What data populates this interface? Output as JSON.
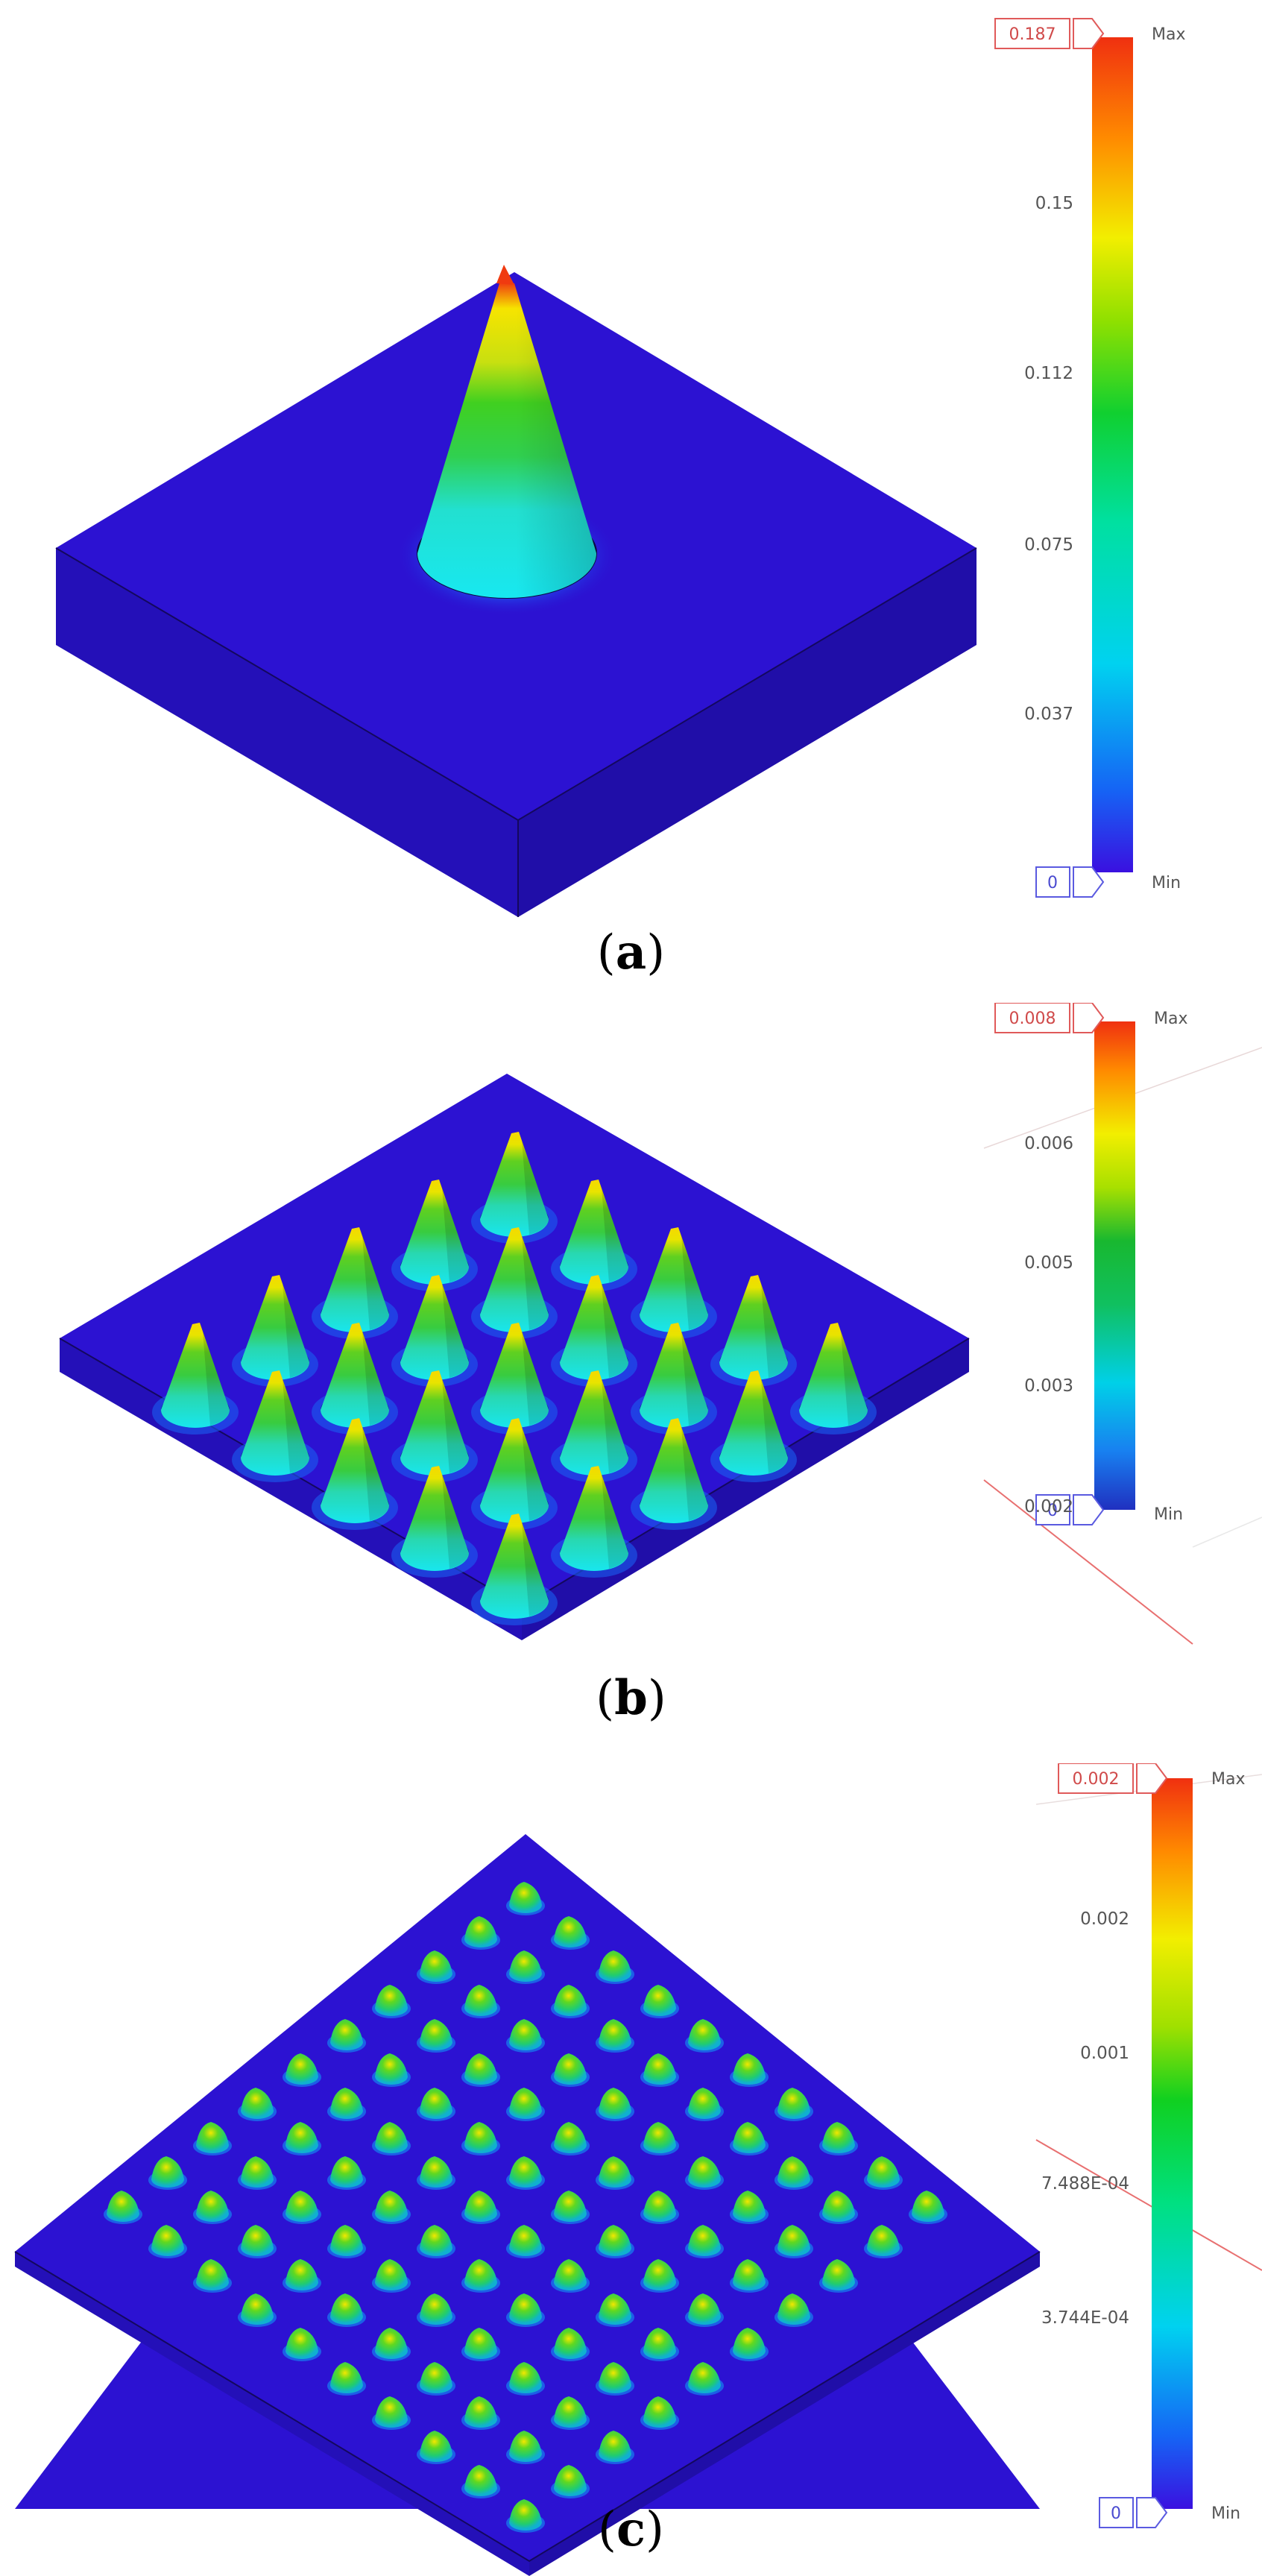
{
  "panels": [
    {
      "id": "a",
      "caption_letter": "a",
      "legend": {
        "max_value": "0.187",
        "min_value": "0",
        "max_label": "Max",
        "min_label": "Min",
        "ticks": [
          "0.15",
          "0.112",
          "0.075",
          "0.037"
        ]
      }
    },
    {
      "id": "b",
      "caption_letter": "b",
      "legend": {
        "max_value": "0.008",
        "min_value": "0",
        "max_label": "Max",
        "min_label": "Min",
        "ticks": [
          "0.006",
          "0.005",
          "0.003",
          "0.002"
        ]
      }
    },
    {
      "id": "c",
      "caption_letter": "c",
      "legend": {
        "max_value": "0.002",
        "min_value": "0",
        "max_label": "Max",
        "min_label": "Min",
        "ticks": [
          "0.002",
          "0.001",
          "7.488E-04",
          "3.744E-04"
        ]
      }
    }
  ],
  "colors": {
    "plate": "#2a0fd0",
    "max_box": "#e05a5a",
    "min_box": "#5a5ae0"
  }
}
